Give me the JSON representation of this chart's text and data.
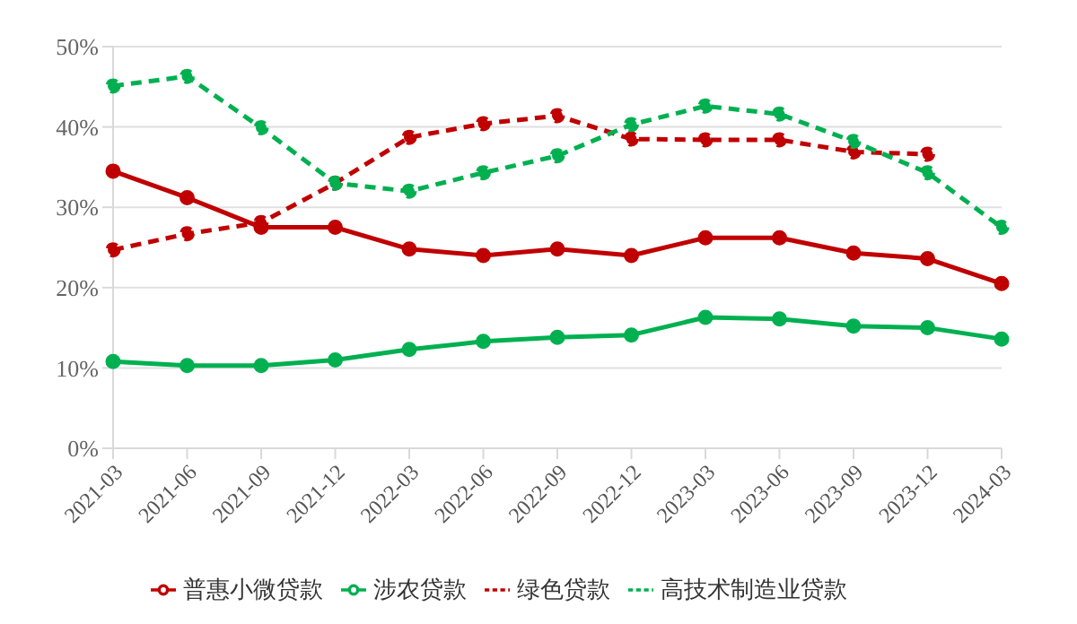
{
  "chart_data": {
    "type": "line",
    "categories": [
      "2021-03",
      "2021-06",
      "2021-09",
      "2021-12",
      "2022-03",
      "2022-06",
      "2022-09",
      "2022-12",
      "2023-03",
      "2023-06",
      "2023-09",
      "2023-12",
      "2024-03"
    ],
    "series": [
      {
        "name": "普惠小微贷款",
        "color": "#c00000",
        "line_style": "solid",
        "values": [
          34.5,
          31.2,
          27.5,
          27.5,
          24.8,
          24.0,
          24.8,
          24.0,
          26.2,
          26.2,
          24.3,
          23.6,
          20.5
        ]
      },
      {
        "name": "涉农贷款",
        "color": "#00b050",
        "line_style": "solid",
        "values": [
          10.8,
          10.3,
          10.3,
          11.0,
          12.3,
          13.3,
          13.8,
          14.1,
          16.3,
          16.1,
          15.2,
          15.0,
          13.6
        ]
      },
      {
        "name": "绿色贷款",
        "color": "#c00000",
        "line_style": "dashed",
        "values": [
          24.7,
          26.7,
          28.1,
          33.0,
          38.7,
          40.4,
          41.4,
          38.5,
          38.4,
          38.4,
          36.9,
          36.6,
          null
        ]
      },
      {
        "name": "高技术制造业贷款",
        "color": "#00b050",
        "line_style": "dashed",
        "values": [
          45.1,
          46.3,
          39.9,
          33.0,
          32.0,
          34.3,
          36.4,
          40.3,
          42.6,
          41.6,
          38.2,
          34.3,
          27.5
        ]
      }
    ],
    "ylim": [
      0,
      50
    ],
    "yticks": [
      {
        "value": 0,
        "label": "0%"
      },
      {
        "value": 10,
        "label": "10%"
      },
      {
        "value": 20,
        "label": "20%"
      },
      {
        "value": 30,
        "label": "30%"
      },
      {
        "value": 40,
        "label": "40%"
      },
      {
        "value": 50,
        "label": "50%"
      }
    ],
    "grid": "y",
    "legend": "bottom",
    "marker": "circle"
  }
}
